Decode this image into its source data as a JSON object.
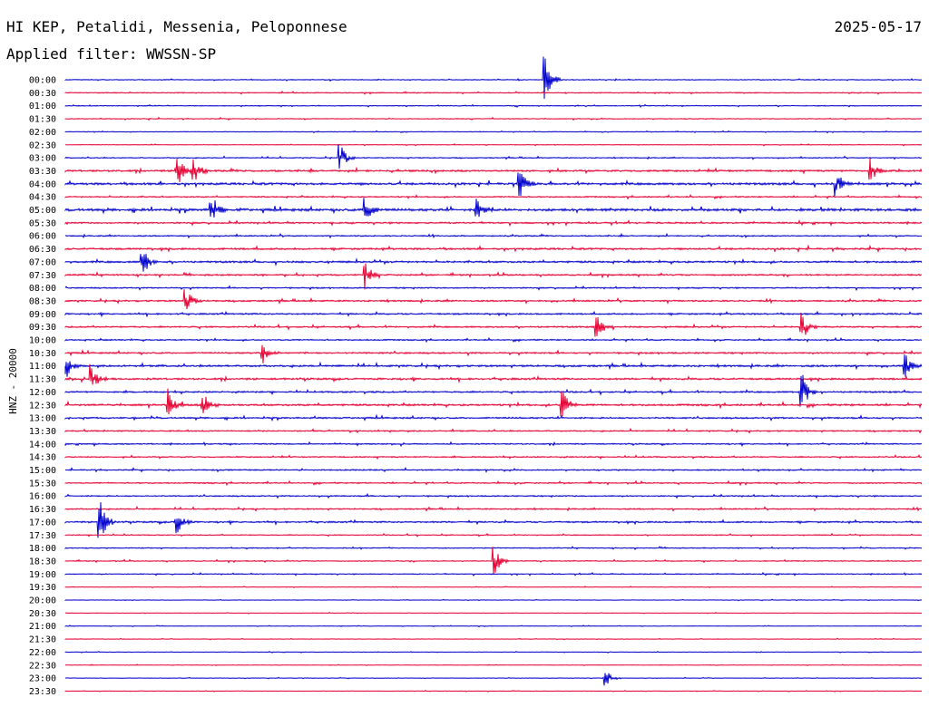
{
  "header": {
    "station": "HI KEP, Petalidi, Messenia, Peloponnese",
    "date": "2025-05-17",
    "filter": "Applied filter: WWSSN-SP"
  },
  "chart_data": {
    "type": "line",
    "title": "HI KEP, Petalidi, Messenia, Peloponnese",
    "ylabel": "HNZ - 20000",
    "xlabel": "",
    "row_labels": [
      "00:00",
      "00:30",
      "01:00",
      "01:30",
      "02:00",
      "02:30",
      "03:00",
      "03:30",
      "04:00",
      "04:30",
      "05:00",
      "05:30",
      "06:00",
      "06:30",
      "07:00",
      "07:30",
      "08:00",
      "08:30",
      "09:00",
      "09:30",
      "10:00",
      "10:30",
      "11:00",
      "11:30",
      "12:00",
      "12:30",
      "13:00",
      "13:30",
      "14:00",
      "14:30",
      "15:00",
      "15:30",
      "16:00",
      "16:30",
      "17:00",
      "17:30",
      "18:00",
      "18:30",
      "19:00",
      "19:30",
      "20:00",
      "20:30",
      "21:00",
      "21:30",
      "22:00",
      "22:30",
      "23:00",
      "23:30"
    ],
    "colors": [
      "#0000cc",
      "#e60033"
    ],
    "activity": [
      0.25,
      0.3,
      0.25,
      0.25,
      0.2,
      0.2,
      0.3,
      0.6,
      0.7,
      0.4,
      0.8,
      0.5,
      0.4,
      0.6,
      0.6,
      0.5,
      0.4,
      0.5,
      0.5,
      0.5,
      0.4,
      0.5,
      0.6,
      0.6,
      0.5,
      0.6,
      0.5,
      0.4,
      0.4,
      0.4,
      0.4,
      0.4,
      0.4,
      0.4,
      0.5,
      0.3,
      0.3,
      0.3,
      0.3,
      0.15,
      0.15,
      0.15,
      0.15,
      0.15,
      0.15,
      0.15,
      0.15,
      0.15
    ],
    "events": [
      {
        "row": 0,
        "x": 0.56,
        "amp": 2.0
      },
      {
        "row": 6,
        "x": 0.32,
        "amp": 1.3
      },
      {
        "row": 7,
        "x": 0.13,
        "amp": 1.6
      },
      {
        "row": 7,
        "x": 0.15,
        "amp": 1.2
      },
      {
        "row": 7,
        "x": 0.94,
        "amp": 1.0
      },
      {
        "row": 8,
        "x": 0.53,
        "amp": 1.3
      },
      {
        "row": 8,
        "x": 0.9,
        "amp": 1.2
      },
      {
        "row": 10,
        "x": 0.17,
        "amp": 1.5
      },
      {
        "row": 10,
        "x": 0.35,
        "amp": 1.2
      },
      {
        "row": 10,
        "x": 0.48,
        "amp": 1.0
      },
      {
        "row": 14,
        "x": 0.09,
        "amp": 1.5
      },
      {
        "row": 15,
        "x": 0.35,
        "amp": 1.1
      },
      {
        "row": 17,
        "x": 0.14,
        "amp": 1.3
      },
      {
        "row": 19,
        "x": 0.62,
        "amp": 1.1
      },
      {
        "row": 19,
        "x": 0.86,
        "amp": 1.3
      },
      {
        "row": 21,
        "x": 0.23,
        "amp": 1.0
      },
      {
        "row": 22,
        "x": 0.0,
        "amp": 1.2
      },
      {
        "row": 22,
        "x": 0.98,
        "amp": 1.1
      },
      {
        "row": 23,
        "x": 0.03,
        "amp": 1.3
      },
      {
        "row": 24,
        "x": 0.86,
        "amp": 1.6
      },
      {
        "row": 25,
        "x": 0.12,
        "amp": 1.3
      },
      {
        "row": 25,
        "x": 0.16,
        "amp": 1.4
      },
      {
        "row": 25,
        "x": 0.58,
        "amp": 1.3
      },
      {
        "row": 34,
        "x": 0.04,
        "amp": 2.0
      },
      {
        "row": 34,
        "x": 0.13,
        "amp": 1.2
      },
      {
        "row": 37,
        "x": 0.5,
        "amp": 1.4
      },
      {
        "row": 46,
        "x": 0.63,
        "amp": 0.8
      }
    ]
  }
}
